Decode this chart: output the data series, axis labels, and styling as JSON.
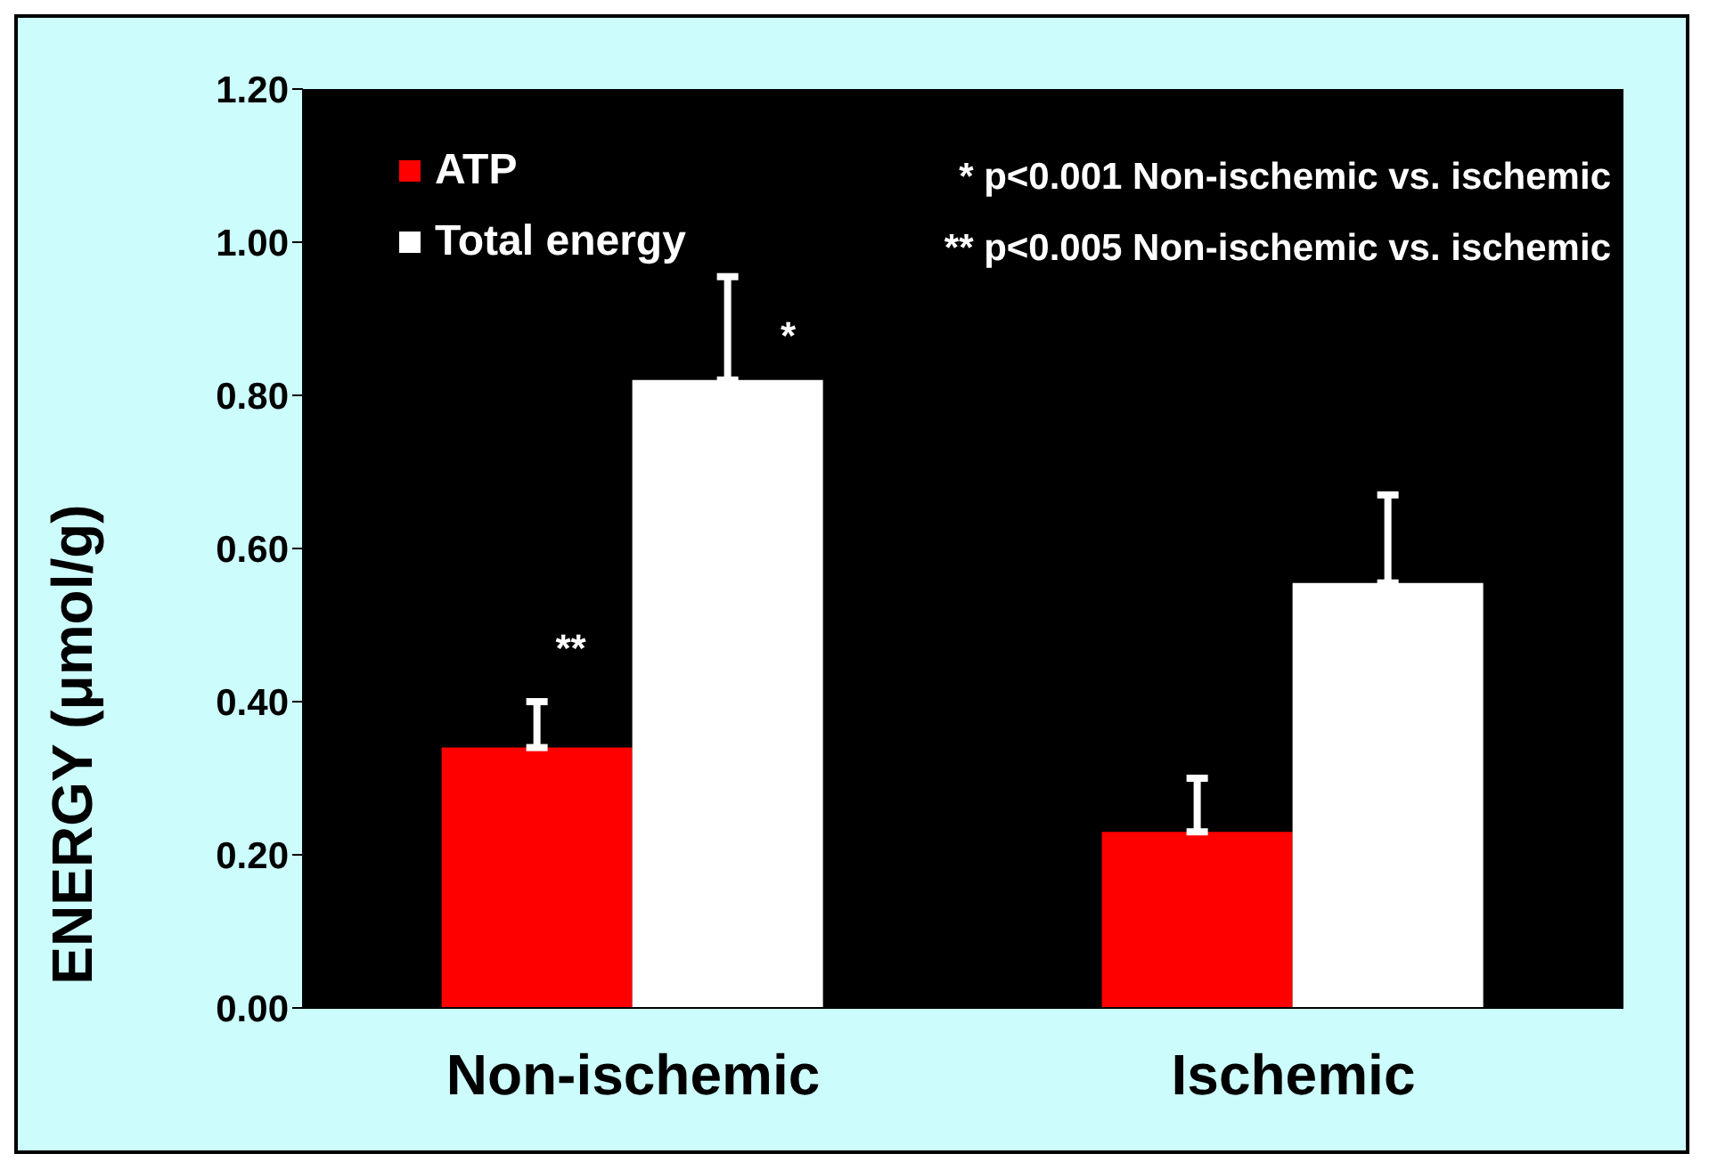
{
  "chart_data": {
    "type": "bar",
    "ylabel": "ENERGY (μmol/g)",
    "categories": [
      "Non-ischemic",
      "Ischemic"
    ],
    "series": [
      {
        "name": "ATP",
        "color": "#ff0000",
        "values": [
          0.34,
          0.23
        ],
        "errors": [
          [
            0.34,
            0.4
          ],
          [
            0.23,
            0.3
          ]
        ]
      },
      {
        "name": "Total energy",
        "color": "#ffffff",
        "values": [
          0.82,
          0.555
        ],
        "errors": [
          [
            0.82,
            0.955
          ],
          [
            0.555,
            0.67
          ]
        ]
      }
    ],
    "ylim": [
      0,
      1.2
    ],
    "yticks": [
      {
        "value": 0,
        "label": "0.00"
      },
      {
        "value": 0.2,
        "label": "0.20"
      },
      {
        "value": 0.4,
        "label": "0.40"
      },
      {
        "value": 0.6,
        "label": "0.60"
      },
      {
        "value": 0.8,
        "label": "0.80"
      },
      {
        "value": 1,
        "label": "1.00"
      },
      {
        "value": 1.2,
        "label": "1.20"
      }
    ],
    "grid": false,
    "legend": "top left",
    "annotations": [
      "* p<0.001 Non-ischemic vs. ischemic",
      "** p<0.005 Non-ischemic vs. ischemic",
      {
        "text": "**",
        "x": "Non-ischemic",
        "y": 0.47
      },
      "*"
    ]
  }
}
